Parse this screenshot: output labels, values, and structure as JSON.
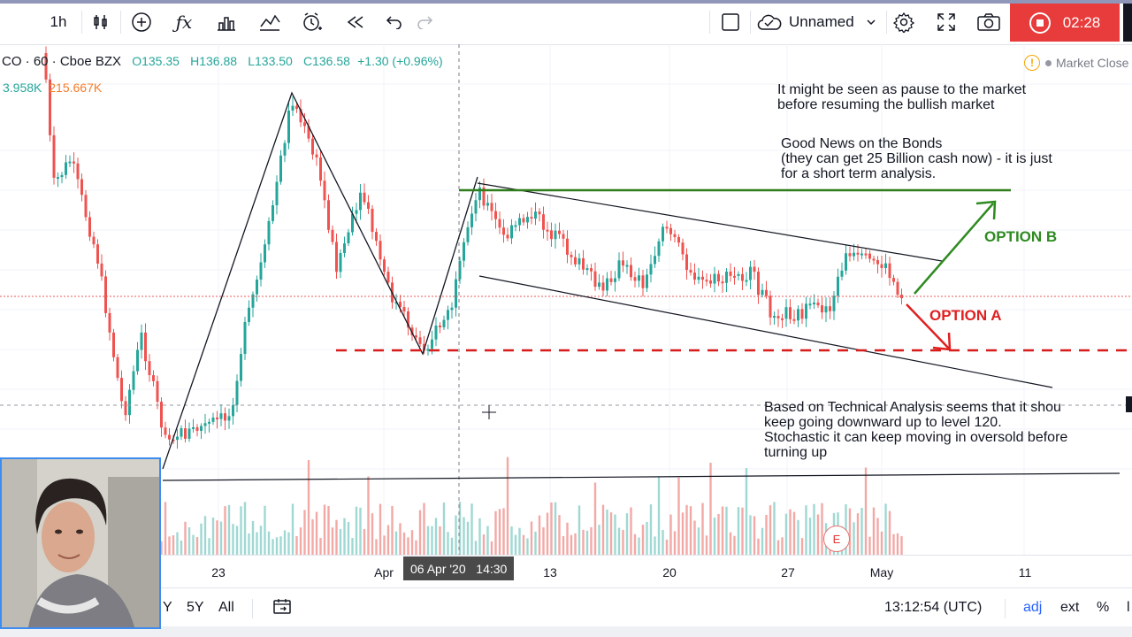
{
  "toolbar": {
    "interval": "1h",
    "layout_name": "Unnamed",
    "timer": "02:28",
    "icons": [
      "bar-style-icon",
      "add-indicator-icon",
      "fx-icon",
      "templates-icon",
      "compare-icon",
      "alert-icon",
      "replay-icon",
      "undo-icon",
      "redo-icon",
      "select-square-icon",
      "cloud-save-icon",
      "chevron-down-icon",
      "settings-gear-icon",
      "fullscreen-icon",
      "camera-icon",
      "record-icon"
    ]
  },
  "legend": {
    "symbol": "CO · 60 · Cboe BZX",
    "open": "O135.35",
    "high": "H136.88",
    "low": "L133.50",
    "close": "C136.58",
    "change": "+1.30 (+0.96%)",
    "volume1": "3.958K",
    "volume2": "215.667K"
  },
  "market_status": "Market Close",
  "notes": {
    "note1": "It might be seen as pause to the market\nbefore resuming the bullish market",
    "note2": "Good News on the Bonds\n(they can get 25 Billion cash now) - it is just\nfor a short term analysis.",
    "note3": "Based on Technical Analysis seems that it shou\nkeep going downward up to level 120.\nStochastic it can keep moving in oversold before\nturning up"
  },
  "options": {
    "option_b": "OPTION B",
    "option_a": "OPTION A"
  },
  "colors": {
    "up": "#26a69a",
    "down": "#ef5350",
    "option_b": "#2e8b20",
    "option_a": "#e02020",
    "record": "#e83b3b"
  },
  "xaxis": {
    "labels": [
      "23",
      "Apr",
      "13",
      "20",
      "27",
      "May",
      "11"
    ],
    "crosshair_label": "06 Apr '20   14:30"
  },
  "earnings_marker": "E",
  "bottombar": {
    "range_y": "Y",
    "range_5y": "5Y",
    "range_all": "All",
    "time": "13:12:54 (UTC)",
    "adj": "adj",
    "ext": "ext",
    "percent": "%",
    "log": "l"
  }
}
